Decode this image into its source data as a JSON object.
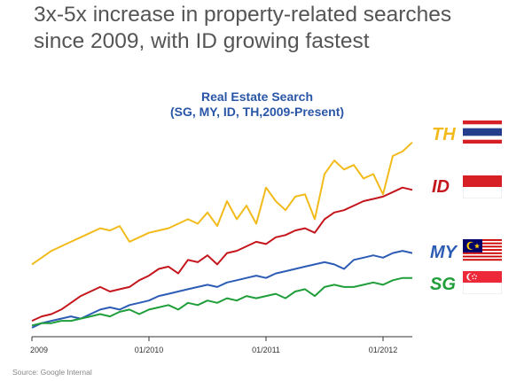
{
  "headline": {
    "line1": "3x-5x increase in property-related searches",
    "line2": "since 2009, with ID growing fastest"
  },
  "source": "Source: Google Internal",
  "colors": {
    "TH": "#f2bb1b",
    "ID": "#c4161c",
    "MY": "#2d5cb5",
    "SG": "#1f9e3a",
    "title": "#2a56a8"
  },
  "chart_data": {
    "type": "line",
    "title": "Real Estate Search",
    "subtitle": "(SG, MY, ID, TH,2009-Present)",
    "x": [
      "2009-01",
      "2009-02",
      "2009-03",
      "2009-04",
      "2009-05",
      "2009-06",
      "2009-07",
      "2009-08",
      "2009-09",
      "2009-10",
      "2009-11",
      "2009-12",
      "2010-01",
      "2010-02",
      "2010-03",
      "2010-04",
      "2010-05",
      "2010-06",
      "2010-07",
      "2010-08",
      "2010-09",
      "2010-10",
      "2010-11",
      "2010-12",
      "2011-01",
      "2011-02",
      "2011-03",
      "2011-04",
      "2011-05",
      "2011-06",
      "2011-07",
      "2011-08",
      "2011-09",
      "2011-10",
      "2011-11",
      "2011-12",
      "2012-01",
      "2012-02",
      "2012-03",
      "2012-04"
    ],
    "x_tick_labels": [
      "2009",
      "01/2010",
      "01/2011",
      "01/2012"
    ],
    "ylim": [
      0,
      100
    ],
    "series": [
      {
        "name": "TH",
        "values": [
          32,
          35,
          38,
          40,
          42,
          44,
          46,
          48,
          47,
          49,
          42,
          44,
          46,
          47,
          48,
          50,
          52,
          50,
          55,
          49,
          60,
          52,
          58,
          50,
          66,
          60,
          56,
          62,
          63,
          52,
          72,
          78,
          74,
          76,
          70,
          72,
          63,
          80,
          82,
          86
        ]
      },
      {
        "name": "ID",
        "values": [
          7,
          9,
          10,
          12,
          15,
          18,
          20,
          22,
          20,
          21,
          22,
          25,
          27,
          30,
          31,
          28,
          34,
          33,
          36,
          32,
          37,
          38,
          40,
          42,
          41,
          44,
          45,
          47,
          48,
          46,
          52,
          55,
          56,
          58,
          60,
          61,
          62,
          64,
          66,
          65
        ]
      },
      {
        "name": "MY",
        "values": [
          4,
          6,
          7,
          8,
          9,
          8,
          10,
          12,
          13,
          12,
          14,
          15,
          16,
          18,
          19,
          20,
          21,
          22,
          23,
          22,
          24,
          25,
          26,
          27,
          26,
          28,
          29,
          30,
          31,
          32,
          33,
          32,
          30,
          34,
          35,
          36,
          35,
          37,
          38,
          37
        ]
      },
      {
        "name": "SG",
        "values": [
          5,
          6,
          6,
          7,
          7,
          8,
          9,
          10,
          9,
          11,
          12,
          10,
          12,
          13,
          14,
          12,
          15,
          14,
          16,
          15,
          17,
          16,
          18,
          17,
          18,
          19,
          17,
          20,
          21,
          18,
          22,
          23,
          22,
          22,
          23,
          24,
          23,
          25,
          26,
          26
        ]
      }
    ]
  }
}
